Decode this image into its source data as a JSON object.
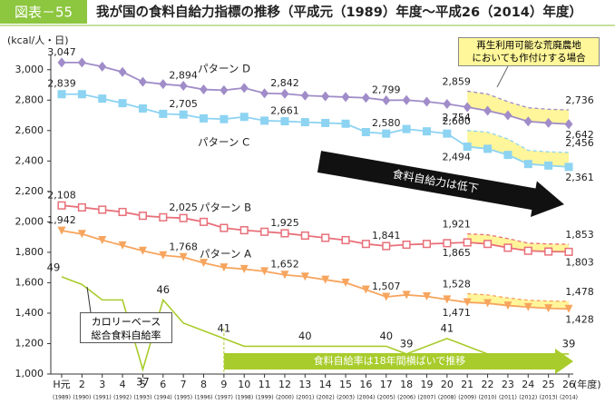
{
  "chart_data": {
    "type": "line",
    "figure_label": "図表－55",
    "title": "我が国の食料自給力指標の推移（平成元（1989）年度～平成26（2014）年度）",
    "y_label": "(kcal/人・日)",
    "x_label": "(年度)",
    "categories": [
      "H元",
      "2",
      "3",
      "4",
      "5",
      "6",
      "7",
      "8",
      "9",
      "10",
      "11",
      "12",
      "13",
      "14",
      "15",
      "16",
      "17",
      "18",
      "19",
      "20",
      "21",
      "22",
      "23",
      "24",
      "25",
      "26"
    ],
    "category_years": [
      "(1989)",
      "(1990)",
      "(1991)",
      "(1992)",
      "(1993)",
      "(1994)",
      "(1995)",
      "(1996)",
      "(1997)",
      "(1998)",
      "(1999)",
      "(2000)",
      "(2001)",
      "(2002)",
      "(2003)",
      "(2004)",
      "(2005)",
      "(2006)",
      "(2007)",
      "(2008)",
      "(2009)",
      "(2010)",
      "(2011)",
      "(2012)",
      "(2013)",
      "(2014)"
    ],
    "ylim": [
      1000,
      3100
    ],
    "yticks": [
      {
        "value": 1000,
        "label": "1,000"
      },
      {
        "value": 1200,
        "label": "1,200"
      },
      {
        "value": 1400,
        "label": "1,400"
      },
      {
        "value": 1600,
        "label": "1,600"
      },
      {
        "value": 1800,
        "label": "1,800"
      },
      {
        "value": 2000,
        "label": "2,000"
      },
      {
        "value": 2200,
        "label": "2,200"
      },
      {
        "value": 2400,
        "label": "2,400"
      },
      {
        "value": 2600,
        "label": "2,600"
      },
      {
        "value": 2800,
        "label": "2,800"
      },
      {
        "value": 3000,
        "label": "3,000"
      }
    ],
    "y2lim": [
      36.4,
      77.8
    ],
    "grid": false,
    "series": [
      {
        "name": "パターン D",
        "color": "#a08cc8",
        "marker": "diamond",
        "values": [
          3047,
          3047,
          3020,
          2985,
          2920,
          2905,
          2894,
          2870,
          2865,
          2880,
          2845,
          2842,
          2830,
          2825,
          2820,
          2815,
          2799,
          2800,
          2790,
          2775,
          2754,
          2730,
          2700,
          2660,
          2650,
          2642
        ],
        "value_labels": [
          "3,047",
          null,
          null,
          null,
          null,
          null,
          "2,894",
          null,
          null,
          null,
          null,
          "2,842",
          null,
          null,
          null,
          null,
          "2,799",
          null,
          null,
          null,
          "2,754",
          null,
          null,
          null,
          null,
          "2,642"
        ],
        "upper_values": [
          null,
          null,
          null,
          null,
          null,
          null,
          null,
          null,
          null,
          null,
          null,
          null,
          null,
          null,
          null,
          null,
          null,
          null,
          null,
          null,
          2859,
          2840,
          2790,
          2750,
          2740,
          2736
        ],
        "upper_value_labels": [
          null,
          null,
          null,
          null,
          null,
          null,
          null,
          null,
          null,
          null,
          null,
          null,
          null,
          null,
          null,
          null,
          null,
          null,
          null,
          null,
          "2,859",
          null,
          null,
          null,
          null,
          "2,736"
        ]
      },
      {
        "name": "パターン C",
        "color": "#8dd3f2",
        "marker": "square",
        "values": [
          2839,
          2839,
          2810,
          2780,
          2745,
          2710,
          2705,
          2680,
          2675,
          2690,
          2665,
          2661,
          2655,
          2650,
          2645,
          2590,
          2580,
          2610,
          2595,
          2580,
          2494,
          2480,
          2440,
          2380,
          2370,
          2361
        ],
        "value_labels": [
          "2,839",
          null,
          null,
          null,
          null,
          null,
          "2,705",
          null,
          null,
          null,
          null,
          "2,661",
          null,
          null,
          null,
          null,
          "2,580",
          null,
          null,
          null,
          "2,494",
          null,
          null,
          null,
          null,
          "2,361"
        ],
        "upper_values": [
          null,
          null,
          null,
          null,
          null,
          null,
          null,
          null,
          null,
          null,
          null,
          null,
          null,
          null,
          null,
          null,
          null,
          null,
          null,
          null,
          2600,
          2590,
          2545,
          2470,
          2460,
          2456
        ],
        "upper_value_labels": [
          null,
          null,
          null,
          null,
          null,
          null,
          null,
          null,
          null,
          null,
          null,
          null,
          null,
          null,
          null,
          null,
          null,
          null,
          null,
          null,
          "2,600",
          null,
          null,
          null,
          null,
          "2,456"
        ]
      },
      {
        "name": "パターン B",
        "color": "#e8707a",
        "marker": "square-open",
        "values": [
          2108,
          2095,
          2080,
          2065,
          2040,
          2030,
          2025,
          2000,
          1960,
          1945,
          1935,
          1925,
          1910,
          1895,
          1880,
          1855,
          1841,
          1850,
          1855,
          1860,
          1865,
          1855,
          1830,
          1810,
          1805,
          1803
        ],
        "value_labels": [
          "2,108",
          null,
          null,
          null,
          null,
          null,
          "2,025",
          null,
          null,
          null,
          null,
          "1,925",
          null,
          null,
          null,
          null,
          "1,841",
          null,
          null,
          null,
          "1,865",
          null,
          null,
          null,
          null,
          "1,803"
        ],
        "upper_values": [
          null,
          null,
          null,
          null,
          null,
          null,
          null,
          null,
          null,
          null,
          null,
          null,
          null,
          null,
          null,
          null,
          null,
          null,
          null,
          null,
          1921,
          1915,
          1890,
          1860,
          1855,
          1853
        ],
        "upper_value_labels": [
          null,
          null,
          null,
          null,
          null,
          null,
          null,
          null,
          null,
          null,
          null,
          null,
          null,
          null,
          null,
          null,
          null,
          null,
          null,
          null,
          "1,921",
          null,
          null,
          null,
          null,
          "1,853"
        ]
      },
      {
        "name": "パターン A",
        "color": "#f7a55e",
        "marker": "triangle-down",
        "values": [
          1942,
          1920,
          1880,
          1845,
          1810,
          1780,
          1768,
          1730,
          1700,
          1690,
          1675,
          1652,
          1640,
          1620,
          1600,
          1555,
          1507,
          1520,
          1510,
          1490,
          1471,
          1465,
          1450,
          1440,
          1432,
          1428
        ],
        "value_labels": [
          "1,942",
          null,
          null,
          null,
          null,
          null,
          "1,768",
          null,
          null,
          null,
          null,
          "1,652",
          null,
          null,
          null,
          null,
          "1,507",
          null,
          null,
          null,
          "1,471",
          null,
          null,
          null,
          null,
          "1,428"
        ],
        "upper_values": [
          null,
          null,
          null,
          null,
          null,
          null,
          null,
          null,
          null,
          null,
          null,
          null,
          null,
          null,
          null,
          null,
          null,
          null,
          null,
          null,
          1528,
          1520,
          1500,
          1485,
          1480,
          1478
        ],
        "upper_value_labels": [
          null,
          null,
          null,
          null,
          null,
          null,
          null,
          null,
          null,
          null,
          null,
          null,
          null,
          null,
          null,
          null,
          null,
          null,
          null,
          null,
          "1,528",
          null,
          null,
          null,
          null,
          "1,478"
        ]
      },
      {
        "name": "カロリーベース総合食料自給率",
        "color": "#a8cc2c",
        "axis": "y2",
        "values": [
          49,
          48,
          46,
          46,
          37,
          46,
          43,
          42,
          41,
          40,
          40,
          40,
          40,
          40,
          40,
          40,
          40,
          39,
          40,
          41,
          40,
          39,
          39,
          39,
          39,
          39
        ]
      }
    ],
    "band_note": [
      "再生利用可能な荒廃農地",
      "においても作付けする場合"
    ],
    "trend_note": "食料自給力は低下",
    "rate_note": "食料自給率は18年間横ばいで推移"
  }
}
